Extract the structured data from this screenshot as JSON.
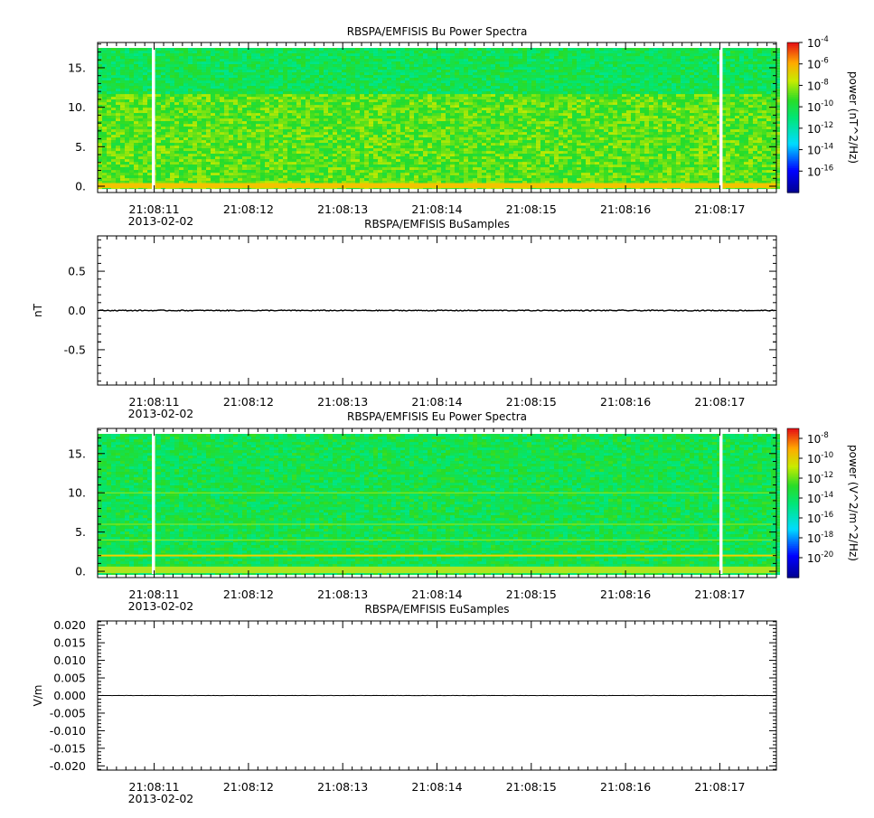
{
  "colors": {
    "spectra_base": "#22dd22",
    "spectra_hot": "#ffee00",
    "line_trace": "#000000",
    "gap": "#ffffff"
  },
  "time_axis": {
    "ticks": [
      "21:08:11",
      "21:08:12",
      "21:08:13",
      "21:08:14",
      "21:08:15",
      "21:08:16",
      "21:08:17"
    ],
    "date": "2013-02-02",
    "data_range_s": [
      10.4,
      17.6
    ],
    "major_tick_s": [
      11,
      12,
      13,
      14,
      15,
      16,
      17
    ],
    "minor_per_second": 10
  },
  "chart_data": [
    {
      "type": "heatmap",
      "title": "RBSPA/EMFISIS  Bu Power Spectra",
      "ylabel": "",
      "ylim": [
        -0.8,
        18.2
      ],
      "yticks": [
        {
          "value": 0,
          "label": "0."
        },
        {
          "value": 5,
          "label": "5."
        },
        {
          "value": 10,
          "label": "10."
        },
        {
          "value": 15,
          "label": "15."
        }
      ],
      "data_top": 17.5,
      "band_boundary": 12.0,
      "bright_floor_band": [
        0,
        0.4
      ],
      "gaps_s": [
        10.99,
        17.01
      ],
      "colorbar": {
        "label": "power (nT^2/Hz)",
        "range_exp": [
          -18,
          -4
        ],
        "exponents": [
          "-4",
          "-6",
          "-8",
          "-10",
          "-12",
          "-14",
          "-16"
        ],
        "tick_exp": [
          -4,
          -6,
          -8,
          -10,
          -12,
          -14,
          -16
        ]
      }
    },
    {
      "type": "line",
      "title": "RBSPA/EMFISIS  BuSamples",
      "ylabel": "nT",
      "ylim": [
        -0.95,
        0.95
      ],
      "yticks": [
        {
          "value": 0.5,
          "label": "0.5"
        },
        {
          "value": 0,
          "label": "0.0"
        },
        {
          "value": -0.5,
          "label": "-0.5"
        }
      ],
      "series": [
        {
          "baseline": 0.0,
          "noise_amplitude": 0.006
        }
      ]
    },
    {
      "type": "heatmap",
      "title": "RBSPA/EMFISIS  Eu Power Spectra",
      "ylabel": "",
      "ylim": [
        -0.8,
        18.2
      ],
      "yticks": [
        {
          "value": 0,
          "label": "0."
        },
        {
          "value": 5,
          "label": "5."
        },
        {
          "value": 10,
          "label": "10."
        },
        {
          "value": 15,
          "label": "15."
        }
      ],
      "data_top": 17.5,
      "bright_lines": [
        2.0,
        4.0,
        6.0,
        10.0
      ],
      "gaps_s": [
        10.99,
        17.01
      ],
      "colorbar": {
        "label": "power (V^2/m^2/Hz)",
        "range_exp": [
          -22,
          -7
        ],
        "exponents": [
          "-8",
          "-10",
          "-12",
          "-14",
          "-16",
          "-18",
          "-20"
        ],
        "tick_exp": [
          -8,
          -10,
          -12,
          -14,
          -16,
          -18,
          -20
        ]
      }
    },
    {
      "type": "line",
      "title": "RBSPA/EMFISIS  EuSamples",
      "ylabel": "V/m",
      "ylim": [
        -0.0212,
        0.0212
      ],
      "yticks": [
        {
          "value": 0.02,
          "label": "0.020"
        },
        {
          "value": 0.015,
          "label": "0.015"
        },
        {
          "value": 0.01,
          "label": "0.010"
        },
        {
          "value": 0.005,
          "label": "0.005"
        },
        {
          "value": 0,
          "label": "0.000"
        },
        {
          "value": -0.005,
          "label": "-0.005"
        },
        {
          "value": -0.01,
          "label": "-0.010"
        },
        {
          "value": -0.015,
          "label": "-0.015"
        },
        {
          "value": -0.02,
          "label": "-0.020"
        }
      ],
      "series": [
        {
          "baseline": 0.0,
          "noise_amplitude": 3e-05
        }
      ]
    }
  ]
}
